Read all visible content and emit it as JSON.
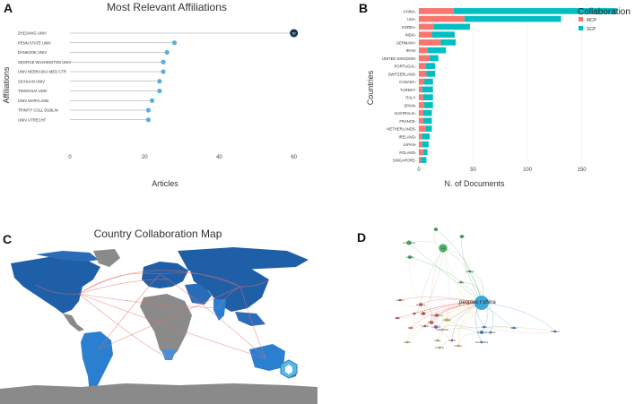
{
  "panel_letters": [
    "A",
    "B",
    "C",
    "D"
  ],
  "chart_data": [
    {
      "type": "lollipop",
      "title": "Most Relevant Affiliations",
      "xlabel": "Articles",
      "ylabel": "Affiliations",
      "xlim": [
        0,
        62
      ],
      "xticks": [
        0,
        20,
        40,
        60
      ],
      "categories": [
        "ZHEJIANG UNIV",
        "PENN STATE UNIV",
        "DANKOOK UNIV",
        "GEORGE WASHINGTON UNIV",
        "UNIV NEBRASKA MED CTR",
        "SICHUAN UNIV",
        "TSINGHUA UNIV",
        "UNIV MARYLAND",
        "TRINITY COLL DUBLIN",
        "UNIV UTRECHT"
      ],
      "values": [
        60,
        28,
        26,
        25,
        25,
        24,
        24,
        22,
        21,
        21
      ],
      "top_label": "60"
    },
    {
      "type": "bar",
      "stacked": true,
      "orientation": "horizontal",
      "title": "",
      "xlabel": "N. of Documents",
      "ylabel": "Countries",
      "xlim": [
        0,
        185
      ],
      "xticks": [
        0,
        50,
        100,
        150
      ],
      "legend_title": "Collaboration",
      "legend_position": "top-right",
      "categories": [
        "CHINA",
        "USA",
        "KOREA",
        "INDIA",
        "GERMANY",
        "IRAN",
        "UNITED KINGDOM",
        "PORTUGAL",
        "SWITZERLAND",
        "CANADA",
        "TURKEY",
        "ITALY",
        "SPAIN",
        "AUSTRALIA",
        "FRANCE",
        "NETHERLANDS",
        "IRELAND",
        "JAPAN",
        "POLAND",
        "SINGAPORE"
      ],
      "series": [
        {
          "name": "MCP",
          "color": "#F8766D",
          "values": [
            32,
            42,
            14,
            12,
            20,
            8,
            10,
            6,
            7,
            5,
            3,
            4,
            5,
            4,
            4,
            6,
            3,
            3,
            4,
            2
          ]
        },
        {
          "name": "SCP",
          "color": "#00BFC4",
          "values": [
            150,
            89,
            33,
            21,
            14,
            17,
            8,
            9,
            8,
            8,
            10,
            9,
            8,
            8,
            8,
            6,
            7,
            6,
            4,
            5
          ]
        }
      ]
    },
    {
      "type": "map",
      "title": "Country Collaboration Map"
    },
    {
      "type": "network",
      "title": "",
      "nodes": [
        {
          "label": "peoples r china",
          "size": 12,
          "color": "#2a9fd6"
        },
        {
          "label": "usa",
          "size": 7,
          "color": "#3aa857"
        },
        {
          "label": "south korea",
          "size": 4,
          "color": "#3aa857"
        },
        {
          "label": "italy",
          "size": 3,
          "color": "#3aa857"
        },
        {
          "label": "india",
          "size": 3,
          "color": "#3aa857"
        },
        {
          "label": "canada",
          "size": 3,
          "color": "#3aa857"
        },
        {
          "label": "germany",
          "size": 3,
          "color": "#e2504a"
        },
        {
          "label": "spain",
          "size": 3,
          "color": "#e2504a"
        },
        {
          "label": "france",
          "size": 3,
          "color": "#e2504a"
        },
        {
          "label": "switzerland",
          "size": 3,
          "color": "#e2504a"
        },
        {
          "label": "poland",
          "size": 2,
          "color": "#e2504a"
        },
        {
          "label": "netherlands",
          "size": 2,
          "color": "#e0c93a"
        },
        {
          "label": "portugal",
          "size": 3,
          "color": "#e0c93a"
        },
        {
          "label": "england",
          "size": 3,
          "color": "#9b59b6"
        },
        {
          "label": "ireland",
          "size": 2,
          "color": "#9b59b6"
        },
        {
          "label": "australia",
          "size": 3,
          "color": "#2a7fd6"
        },
        {
          "label": "japan",
          "size": 2,
          "color": "#2a7fd6"
        },
        {
          "label": "singapore",
          "size": 2,
          "color": "#2a7fd6"
        },
        {
          "label": "turkey",
          "size": 2,
          "color": "#a8c850"
        },
        {
          "label": "iran",
          "size": 2,
          "color": "#e2504a"
        },
        {
          "label": "saudi arabia",
          "size": 2,
          "color": "#2a7fd6"
        },
        {
          "label": "pakistan",
          "size": 2,
          "color": "#3aa857"
        },
        {
          "label": "brazil",
          "size": 2,
          "color": "#e2504a"
        },
        {
          "label": "egypt",
          "size": 2,
          "color": "#3aa857"
        },
        {
          "label": "taiwan",
          "size": 2,
          "color": "#2a7fd6"
        },
        {
          "label": "thailand",
          "size": 2,
          "color": "#2a7fd6"
        },
        {
          "label": "vietnam",
          "size": 2,
          "color": "#e0c93a"
        },
        {
          "label": "israel",
          "size": 2,
          "color": "#e2504a"
        },
        {
          "label": "mexico",
          "size": 2,
          "color": "#a8c850"
        },
        {
          "label": "scotland",
          "size": 2,
          "color": "#e0c93a"
        },
        {
          "label": "sweden",
          "size": 2,
          "color": "#e2504a"
        }
      ]
    }
  ]
}
